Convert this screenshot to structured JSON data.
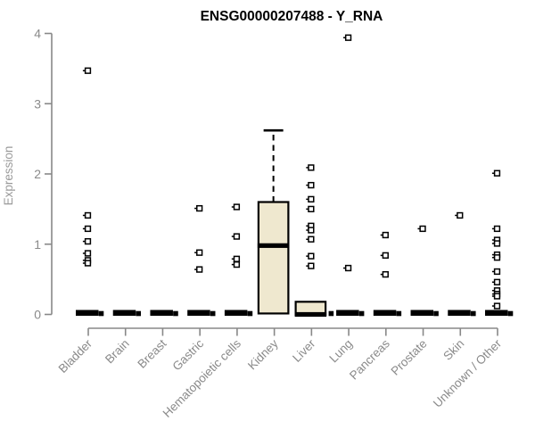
{
  "title": "ENSG00000207488 - Y_RNA",
  "chart_data": {
    "type": "boxplot",
    "title": "ENSG00000207488 - Y_RNA",
    "xlabel": "",
    "ylabel": "Expression",
    "ylim": [
      0,
      4
    ],
    "yticks": [
      0,
      1,
      2,
      3,
      4
    ],
    "grid": false,
    "legend": "none",
    "colors": {
      "box_fill": "#EFE8CF",
      "box_border": "#000000",
      "axis": "#888888",
      "tick_label": "#8A8A8A",
      "axis_title": "#9A9A9A",
      "title": "#000000",
      "point": "#000000"
    },
    "categories": [
      "Bladder",
      "Brain",
      "Breast",
      "Gastric",
      "Hematopoietic cells",
      "Kidney",
      "Liver",
      "Lung",
      "Pancreas",
      "Prostate",
      "Skin",
      "Unknown / Other"
    ],
    "series": [
      {
        "category": "Bladder",
        "box": null,
        "zero_line": true,
        "zero_point": true,
        "outliers": [
          3.47,
          1.41,
          1.22,
          1.04,
          0.87,
          0.77,
          0.73
        ]
      },
      {
        "category": "Brain",
        "box": null,
        "zero_line": true,
        "zero_point": true,
        "outliers": []
      },
      {
        "category": "Breast",
        "box": null,
        "zero_line": true,
        "zero_point": true,
        "outliers": []
      },
      {
        "category": "Gastric",
        "box": null,
        "zero_line": true,
        "zero_point": true,
        "outliers": [
          1.51,
          0.88,
          0.64
        ]
      },
      {
        "category": "Hematopoietic cells",
        "box": null,
        "zero_line": true,
        "zero_point": true,
        "outliers": [
          1.53,
          1.11,
          0.79,
          0.71
        ]
      },
      {
        "category": "Kidney",
        "box": {
          "whisker_high": 2.62,
          "q3": 1.6,
          "median": 0.98,
          "q1": 0.02,
          "whisker_low": 0.02
        },
        "zero_line": false,
        "zero_point": false,
        "outliers": []
      },
      {
        "category": "Liver",
        "box": {
          "whisker_high": 0.18,
          "q3": 0.18,
          "median": 0.0,
          "q1": 0.0,
          "whisker_low": 0.0
        },
        "zero_line": false,
        "zero_point": true,
        "outliers": [
          2.09,
          1.84,
          1.64,
          1.5,
          1.26,
          1.2,
          1.07,
          0.83,
          0.69
        ]
      },
      {
        "category": "Lung",
        "box": null,
        "zero_line": true,
        "zero_point": true,
        "outliers": [
          3.94,
          0.66
        ]
      },
      {
        "category": "Pancreas",
        "box": null,
        "zero_line": true,
        "zero_point": true,
        "outliers": [
          1.13,
          0.84,
          0.57
        ]
      },
      {
        "category": "Prostate",
        "box": null,
        "zero_line": true,
        "zero_point": true,
        "outliers": [
          1.22
        ]
      },
      {
        "category": "Skin",
        "box": null,
        "zero_line": true,
        "zero_point": true,
        "outliers": [
          1.41
        ]
      },
      {
        "category": "Unknown / Other",
        "box": null,
        "zero_line": true,
        "zero_point": true,
        "outliers": [
          2.01,
          1.22,
          1.06,
          1.01,
          0.85,
          0.81,
          0.61,
          0.46,
          0.34,
          0.29,
          0.26,
          0.12
        ]
      }
    ]
  }
}
